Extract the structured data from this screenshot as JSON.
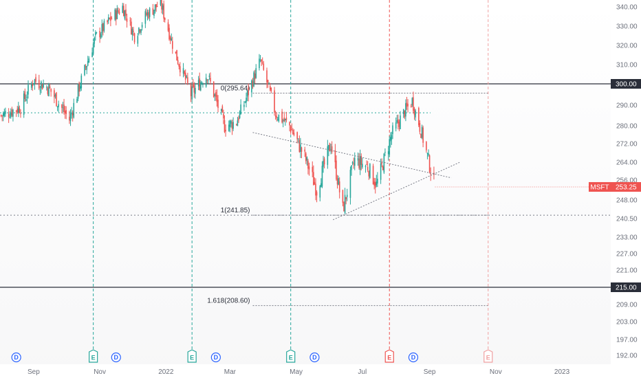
{
  "chart_data": {
    "type": "candlestick",
    "symbol": "MSFT",
    "last_price": 253.25,
    "ylim": [
      190,
      350
    ],
    "y_ticks": [
      192.0,
      197.0,
      203.0,
      209.0,
      215.0,
      221.0,
      227.0,
      233.0,
      240.5,
      248.0,
      256.0,
      264.0,
      272.0,
      280.0,
      290.0,
      300.0,
      310.0,
      320.0,
      330.0,
      340.0
    ],
    "x_ticks": [
      {
        "label": "Sep",
        "date": "2021-09-01"
      },
      {
        "label": "Nov",
        "date": "2021-11-01"
      },
      {
        "label": "2022",
        "date": "2022-01-01"
      },
      {
        "label": "Mar",
        "date": "2022-03-01"
      },
      {
        "label": "May",
        "date": "2022-05-01"
      },
      {
        "label": "Jul",
        "date": "2022-07-01"
      },
      {
        "label": "Sep",
        "date": "2022-09-01"
      },
      {
        "label": "Nov",
        "date": "2022-11-01"
      },
      {
        "label": "2023",
        "date": "2023-01-01"
      }
    ],
    "x_range": [
      "2021-08-01",
      "2023-02-15"
    ],
    "price_path": [
      {
        "date": "2021-08-02",
        "close": 285
      },
      {
        "date": "2021-08-20",
        "close": 289
      },
      {
        "date": "2021-09-01",
        "close": 302
      },
      {
        "date": "2021-09-15",
        "close": 298
      },
      {
        "date": "2021-10-04",
        "close": 283
      },
      {
        "date": "2021-10-15",
        "close": 302
      },
      {
        "date": "2021-10-28",
        "close": 324
      },
      {
        "date": "2021-11-10",
        "close": 333
      },
      {
        "date": "2021-11-22",
        "close": 340
      },
      {
        "date": "2021-12-03",
        "close": 325
      },
      {
        "date": "2021-12-14",
        "close": 336
      },
      {
        "date": "2021-12-27",
        "close": 342
      },
      {
        "date": "2022-01-10",
        "close": 315
      },
      {
        "date": "2022-01-24",
        "close": 295
      },
      {
        "date": "2022-02-08",
        "close": 305
      },
      {
        "date": "2022-02-24",
        "close": 280
      },
      {
        "date": "2022-03-07",
        "close": 282
      },
      {
        "date": "2022-03-15",
        "close": 292
      },
      {
        "date": "2022-03-29",
        "close": 312
      },
      {
        "date": "2022-04-12",
        "close": 286
      },
      {
        "date": "2022-04-25",
        "close": 280
      },
      {
        "date": "2022-05-09",
        "close": 266
      },
      {
        "date": "2022-05-20",
        "close": 252
      },
      {
        "date": "2022-06-02",
        "close": 272
      },
      {
        "date": "2022-06-13",
        "close": 244
      },
      {
        "date": "2022-06-24",
        "close": 265
      },
      {
        "date": "2022-07-06",
        "close": 262
      },
      {
        "date": "2022-07-14",
        "close": 254
      },
      {
        "date": "2022-07-28",
        "close": 276
      },
      {
        "date": "2022-08-08",
        "close": 286
      },
      {
        "date": "2022-08-16",
        "close": 292
      },
      {
        "date": "2022-08-24",
        "close": 278
      },
      {
        "date": "2022-09-06",
        "close": 253
      }
    ],
    "horizontal_levels": [
      {
        "price": 300.0,
        "label": "300.00"
      },
      {
        "price": 215.0,
        "label": "215.00"
      }
    ],
    "fib_levels": [
      {
        "label": "0(295.64)",
        "price": 295.64
      },
      {
        "label": "1(241.85)",
        "price": 241.85
      },
      {
        "label": "1.618(208.60)",
        "price": 208.6
      }
    ],
    "horizontal_dotted": [
      {
        "price": 286.3,
        "color": "#26a69a"
      },
      {
        "price": 241.85,
        "color": "#787b86"
      }
    ],
    "trendlines": [
      {
        "from": {
          "date": "2022-03-22",
          "price": 277
        },
        "to": {
          "date": "2022-09-21",
          "price": 257
        }
      },
      {
        "from": {
          "date": "2022-06-04",
          "price": 240
        },
        "to": {
          "date": "2022-09-29",
          "price": 264
        }
      }
    ],
    "events": [
      {
        "date": "2021-08-16",
        "kind": "dividend",
        "label": "D"
      },
      {
        "date": "2021-10-26",
        "kind": "earnings",
        "label": "E"
      },
      {
        "date": "2021-11-16",
        "kind": "dividend",
        "label": "D"
      },
      {
        "date": "2022-01-25",
        "kind": "earnings",
        "label": "E"
      },
      {
        "date": "2022-02-16",
        "kind": "dividend",
        "label": "D"
      },
      {
        "date": "2022-04-26",
        "kind": "earnings",
        "label": "E"
      },
      {
        "date": "2022-05-18",
        "kind": "dividend",
        "label": "D"
      },
      {
        "date": "2022-07-26",
        "kind": "earnings_red",
        "label": "E"
      },
      {
        "date": "2022-08-17",
        "kind": "dividend",
        "label": "D"
      },
      {
        "date": "2022-10-25",
        "kind": "earnings_future",
        "label": "E"
      }
    ],
    "colors": {
      "up": "#26a69a",
      "down": "#ef5350",
      "earnings": "#26a69a",
      "earnings_red": "#ef5350",
      "symbol_tag": "#ef5350",
      "level_tag": "#2a2e39"
    }
  }
}
